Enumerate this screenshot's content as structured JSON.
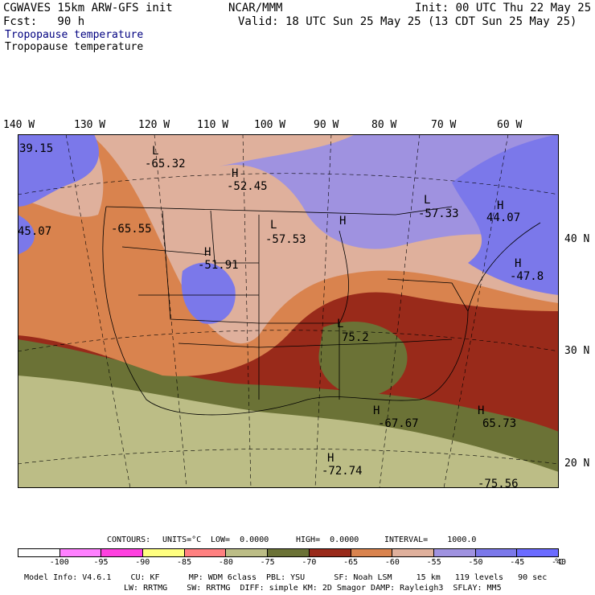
{
  "header": {
    "model_title": "CGWAVES 15km ARW-GFS init",
    "org": "NCAR/MMM",
    "init": "Init: 00 UTC Thu 22 May 25",
    "forecast": "Fcst:   90 h",
    "valid": "Valid: 18 UTC Sun 25 May 25 (13 CDT Sun 25 May 25)",
    "field_title_blue": "Tropopause temperature",
    "field_title_black": "Tropopause temperature"
  },
  "colors": {
    "title_blue": "#000080",
    "fill_minus75_minus70": "#6b7236",
    "fill_minus70_minus65": "#992a1a",
    "fill_minus65_minus60": "#d9834e",
    "fill_minus60_minus55": "#dfb09c",
    "fill_minus55_minus50": "#9f92e0",
    "fill_minus50_minus45": "#7b78ea",
    "fill_minus80_minus75": "#bcbd86"
  },
  "lon_labels": [
    "140 W",
    "130 W",
    "120 W",
    "110 W",
    "100 W",
    "90 W",
    "80 W",
    "70 W",
    "60 W"
  ],
  "lat_labels": [
    "40 N",
    "30 N",
    "20 N"
  ],
  "map_labels": [
    {
      "text": "39.15"
    },
    {
      "text": "L"
    },
    {
      "text": "-65.32"
    },
    {
      "text": "H"
    },
    {
      "text": "-52.45"
    },
    {
      "text": "45.07"
    },
    {
      "text": "-65.55"
    },
    {
      "text": "H"
    },
    {
      "text": "-51.91"
    },
    {
      "text": "L"
    },
    {
      "text": "-57.53"
    },
    {
      "text": "H"
    },
    {
      "text": "L"
    },
    {
      "text": "-57.33"
    },
    {
      "text": "H"
    },
    {
      "text": "44.07"
    },
    {
      "text": "H"
    },
    {
      "text": "-47.8"
    },
    {
      "text": "L"
    },
    {
      "text": "75.2"
    },
    {
      "text": "H"
    },
    {
      "text": "-67.67"
    },
    {
      "text": "H"
    },
    {
      "text": "65.73"
    },
    {
      "text": "H"
    },
    {
      "text": "-72.74"
    },
    {
      "text": "-75.56"
    }
  ],
  "contours": {
    "label": "CONTOURS:",
    "units": "UNITS=°C",
    "low": "LOW=  0.0000",
    "high": "HIGH=  0.0000",
    "interval": "INTERVAL=    1000.0"
  },
  "colorbar": {
    "colors": [
      "#ffffff",
      "#ff80ff",
      "#ff40e0",
      "#ffff80",
      "#ff8080",
      "#bcbd86",
      "#6b7236",
      "#992a1a",
      "#d9834e",
      "#dfb09c",
      "#9f92e0",
      "#7b78ea",
      "#6b6bff"
    ],
    "ticks": [
      "-100",
      "-95",
      "-90",
      "-85",
      "-80",
      "-75",
      "-70",
      "-65",
      "-60",
      "-55",
      "-50",
      "-45",
      "-40"
    ],
    "unit": "°C"
  },
  "footer": {
    "line1": "Model Info: V4.6.1    CU: KF      MP: WDM 6class  PBL: YSU      SF: Noah LSM     15 km   119 levels   90 sec",
    "line2": "LW: RRTMG    SW: RRTMG  DIFF: simple KM: 2D Smagor DAMP: Rayleigh3  SFLAY: MM5"
  }
}
